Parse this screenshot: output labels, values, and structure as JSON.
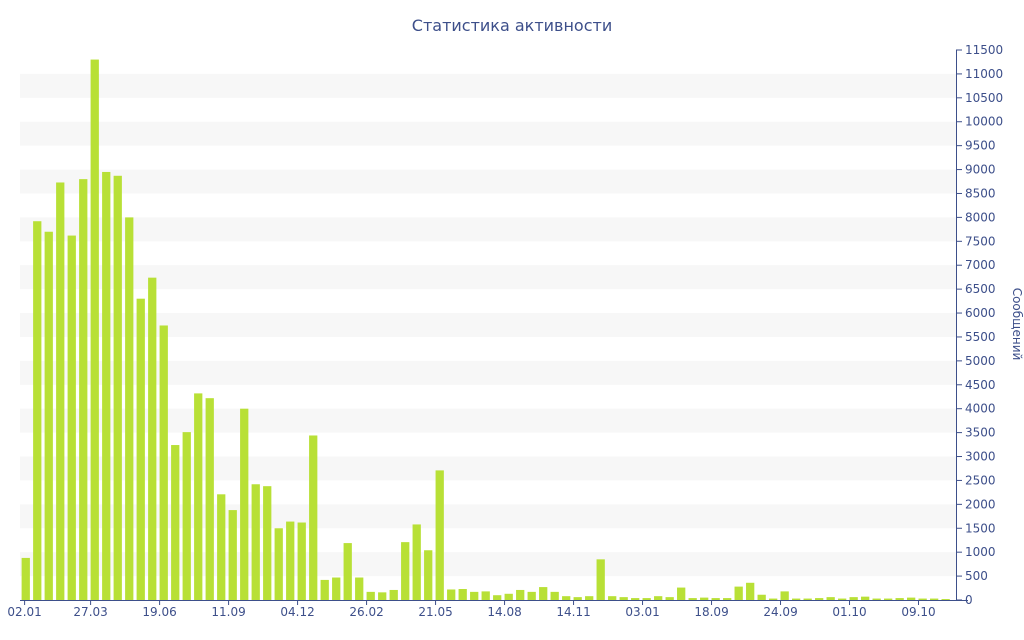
{
  "chart_data": {
    "type": "bar",
    "title": "Статистика активности",
    "ylabel": "Сообщений",
    "xlabel": "",
    "ylim": [
      0,
      11500
    ],
    "y_ticks": [
      0,
      500,
      1000,
      1500,
      2000,
      2500,
      3000,
      3500,
      4000,
      4500,
      5000,
      5500,
      6000,
      6500,
      7000,
      7500,
      8000,
      8500,
      9000,
      9500,
      10000,
      10500,
      11000,
      11500
    ],
    "x_tick_labels": [
      {
        "label": "02.01",
        "index": 0
      },
      {
        "label": "27.03",
        "index": 6
      },
      {
        "label": "19.06",
        "index": 12
      },
      {
        "label": "11.09",
        "index": 18
      },
      {
        "label": "04.12",
        "index": 24
      },
      {
        "label": "26.02",
        "index": 30
      },
      {
        "label": "21.05",
        "index": 36
      },
      {
        "label": "14.08",
        "index": 42
      },
      {
        "label": "14.11",
        "index": 48
      },
      {
        "label": "03.01",
        "index": 54
      },
      {
        "label": "18.09",
        "index": 60
      },
      {
        "label": "24.09",
        "index": 66
      },
      {
        "label": "01.10",
        "index": 72
      },
      {
        "label": "09.10",
        "index": 78
      }
    ],
    "values": [
      880,
      7920,
      7700,
      8730,
      7620,
      8800,
      11300,
      8950,
      8870,
      8000,
      6300,
      6740,
      5740,
      3240,
      3510,
      4320,
      4220,
      2210,
      1880,
      4000,
      2420,
      2380,
      1500,
      1640,
      1620,
      3440,
      420,
      470,
      1190,
      470,
      170,
      160,
      210,
      1210,
      1580,
      1040,
      2710,
      220,
      230,
      170,
      180,
      100,
      130,
      210,
      170,
      270,
      170,
      80,
      60,
      80,
      850,
      80,
      60,
      40,
      40,
      80,
      60,
      260,
      40,
      50,
      40,
      40,
      280,
      360,
      110,
      30,
      180,
      30,
      30,
      40,
      60,
      30,
      60,
      70,
      30,
      30,
      40,
      50,
      30,
      30,
      20
    ],
    "grid": true,
    "grid_style": "alternating horizontal bands",
    "y_axis_position": "right",
    "bar_color": "#b8e036",
    "band_color": "#f7f7f7",
    "axis_text_color": "#3d4f8a",
    "axis_line_color": "#3d4f8a"
  }
}
